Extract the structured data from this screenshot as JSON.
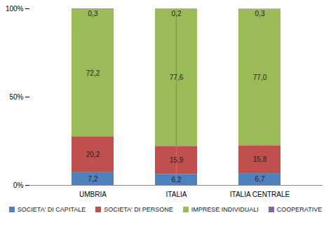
{
  "chart_data": {
    "type": "bar",
    "stacked": true,
    "data_labels": true,
    "grid": false,
    "legend": "bottom",
    "categories": [
      "UMBRIA",
      "ITALIA",
      "ITALIA CENTRALE"
    ],
    "ylim": [
      0,
      100
    ],
    "yticks": [
      {
        "value": 0,
        "label": "0%"
      },
      {
        "value": 50,
        "label": "50%"
      },
      {
        "value": 100,
        "label": "100%"
      }
    ],
    "series": [
      {
        "name": "SOCIETA' DI CAPITALE",
        "color": "#4f81bd",
        "values": [
          7.2,
          6.2,
          6.7
        ],
        "value_labels": [
          "7,2",
          "6,2",
          "6,7"
        ]
      },
      {
        "name": "SOCIETA' DI PERSONE",
        "color": "#c0504d",
        "values": [
          20.2,
          15.9,
          15.8
        ],
        "value_labels": [
          "20,2",
          "15,9",
          "15,8"
        ]
      },
      {
        "name": "IMPRESE INDIVIDUALI",
        "color": "#9bbb59",
        "values": [
          72.2,
          77.6,
          77.0
        ],
        "value_labels": [
          "72,2",
          "77,6",
          "77,0"
        ]
      },
      {
        "name": "COOPERATIVE",
        "color": "#8064a2",
        "values": [
          0.3,
          0.2,
          0.3
        ],
        "value_labels": [
          "0,3",
          "0,2",
          "0,3"
        ]
      }
    ]
  }
}
